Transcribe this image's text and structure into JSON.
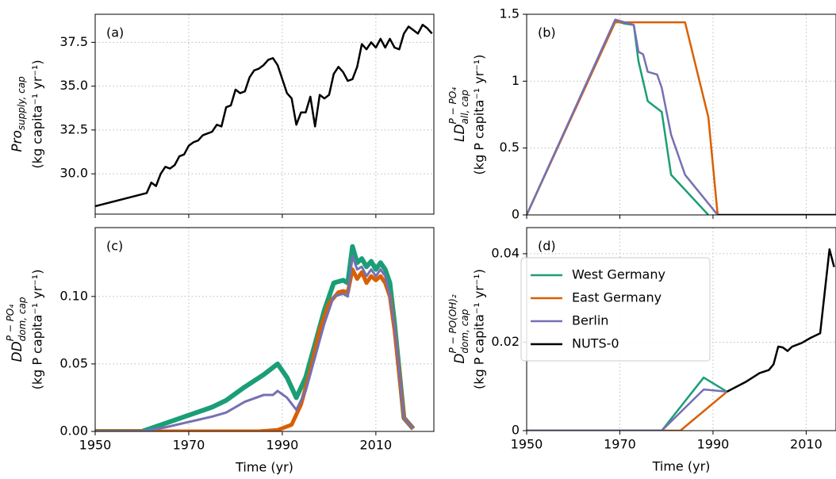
{
  "chart_data": [
    {
      "type": "line",
      "panel_label": "(a)",
      "ylabel": {
        "main": "Pro",
        "sub": "supply, cap",
        "unit": "(kg capita⁻¹ yr⁻¹)"
      },
      "xlim": [
        1950,
        2022.4
      ],
      "ylim": [
        27.7,
        39.1
      ],
      "xticks": [
        1950,
        1970,
        1990,
        2010
      ],
      "yticks": [
        {
          "value": 30,
          "label": "30.0"
        },
        32.5,
        {
          "value": 35,
          "label": "35.0"
        },
        37.5
      ],
      "grid": true,
      "series": [
        {
          "name": "NUTS-0",
          "color": "#000000",
          "x": [
            1950,
            1961,
            1962,
            1963,
            1964,
            1965,
            1966,
            1967,
            1968,
            1969,
            1970,
            1971,
            1972,
            1973,
            1974,
            1975,
            1976,
            1977,
            1978,
            1979,
            1980,
            1981,
            1982,
            1983,
            1984,
            1985,
            1986,
            1987,
            1988,
            1989,
            1990,
            1991,
            1992,
            1993,
            1994,
            1995,
            1996,
            1997,
            1998,
            1999,
            2000,
            2001,
            2002,
            2003,
            2004,
            2005,
            2006,
            2007,
            2008,
            2009,
            2010,
            2011,
            2012,
            2013,
            2014,
            2015,
            2016,
            2017,
            2018,
            2019,
            2020,
            2021,
            2022
          ],
          "values": [
            28.15,
            28.9,
            29.5,
            29.3,
            30.0,
            30.4,
            30.3,
            30.5,
            31.0,
            31.1,
            31.6,
            31.8,
            31.9,
            32.2,
            32.3,
            32.4,
            32.8,
            32.7,
            33.8,
            33.9,
            34.8,
            34.6,
            34.7,
            35.5,
            35.9,
            36.0,
            36.2,
            36.5,
            36.6,
            36.2,
            35.4,
            34.6,
            34.3,
            32.8,
            33.5,
            33.5,
            34.4,
            32.7,
            34.5,
            34.3,
            34.5,
            35.7,
            36.1,
            35.8,
            35.3,
            35.4,
            36.1,
            37.4,
            37.1,
            37.5,
            37.2,
            37.7,
            37.2,
            37.7,
            37.2,
            37.1,
            38.0,
            38.4,
            38.2,
            38.0,
            38.5,
            38.3,
            38.0
          ]
        }
      ]
    },
    {
      "type": "line",
      "panel_label": "(b)",
      "ylabel": {
        "main": "LD",
        "sup": "P − PO₄",
        "sub": "all, cap",
        "unit": "(kg P capita⁻¹ yr⁻¹)"
      },
      "xlim": [
        1950,
        2016.4
      ],
      "ylim": [
        0,
        1.5
      ],
      "xticks": [
        1950,
        1970,
        1990,
        2010
      ],
      "yticks": [
        0,
        0.5,
        1,
        1.5
      ],
      "grid": true,
      "series": [
        {
          "name": "West Germany",
          "color": "#1b9e77",
          "x": [
            1950,
            1969,
            1971,
            1973,
            1974,
            1976,
            1979,
            1981,
            1989
          ],
          "values": [
            0,
            1.45,
            1.43,
            1.42,
            1.15,
            0.85,
            0.77,
            0.3,
            0
          ]
        },
        {
          "name": "East Germany",
          "color": "#d95f02",
          "x": [
            1950,
            1969,
            1984,
            1989,
            1991
          ],
          "values": [
            0,
            1.44,
            1.44,
            0.73,
            0
          ]
        },
        {
          "name": "Berlin",
          "color": "#7570b3",
          "x": [
            1950,
            1969,
            1973,
            1974,
            1975,
            1976,
            1978,
            1979,
            1981,
            1984,
            1991
          ],
          "values": [
            0,
            1.46,
            1.42,
            1.22,
            1.2,
            1.07,
            1.05,
            0.95,
            0.6,
            0.3,
            0
          ]
        },
        {
          "name": "NUTS-0",
          "color": "#000000",
          "x": [
            1991,
            2016.4
          ],
          "values": [
            0,
            0
          ]
        }
      ]
    },
    {
      "type": "line",
      "panel_label": "(c)",
      "xlabel": "Time (yr)",
      "ylabel": {
        "main": "DD",
        "sup": "P − PO₄",
        "sub": "dom, cap",
        "unit": "(kg P capita⁻¹ yr⁻¹)"
      },
      "xlim": [
        1950,
        2022.4
      ],
      "ylim": [
        0,
        0.151
      ],
      "xticks": [
        1950,
        1970,
        1990,
        2010
      ],
      "yticks": [
        {
          "value": 0,
          "label": "0.00"
        },
        {
          "value": 0.05,
          "label": "0.05"
        },
        {
          "value": 0.1,
          "label": "0.10"
        }
      ],
      "grid": true,
      "series": [
        {
          "name": "West Germany",
          "color": "#1b9e77",
          "width": 6,
          "x": [
            1950,
            1960,
            1965,
            1970,
            1975,
            1978,
            1982,
            1986,
            1989,
            1991,
            1993,
            1995,
            1997,
            1999,
            2001,
            2003,
            2004,
            2005,
            2006,
            2007,
            2008,
            2009,
            2010,
            2011,
            2012,
            2013,
            2014,
            2016,
            2018
          ],
          "values": [
            0,
            0,
            0.006,
            0.012,
            0.018,
            0.023,
            0.033,
            0.042,
            0.05,
            0.04,
            0.025,
            0.04,
            0.065,
            0.09,
            0.11,
            0.112,
            0.11,
            0.137,
            0.125,
            0.128,
            0.122,
            0.126,
            0.12,
            0.125,
            0.12,
            0.11,
            0.08,
            0.01,
            0.002
          ]
        },
        {
          "name": "East Germany",
          "color": "#d95f02",
          "width": 5,
          "x": [
            1950,
            1985,
            1989,
            1992,
            1994,
            1996,
            1998,
            2000,
            2002,
            2003,
            2004,
            2005,
            2006,
            2007,
            2008,
            2009,
            2010,
            2011,
            2012,
            2013,
            2014,
            2016,
            2018
          ],
          "values": [
            0,
            0,
            0.001,
            0.005,
            0.02,
            0.045,
            0.075,
            0.095,
            0.103,
            0.104,
            0.103,
            0.12,
            0.113,
            0.118,
            0.11,
            0.115,
            0.112,
            0.115,
            0.11,
            0.1,
            0.075,
            0.01,
            0.002
          ]
        },
        {
          "name": "Berlin",
          "color": "#7570b3",
          "width": 3,
          "x": [
            1950,
            1960,
            1965,
            1970,
            1975,
            1978,
            1982,
            1986,
            1988,
            1989,
            1991,
            1993,
            1995,
            1997,
            1999,
            2001,
            2003,
            2004,
            2005,
            2006,
            2007,
            2008,
            2009,
            2010,
            2011,
            2012,
            2013,
            2014,
            2016,
            2018
          ],
          "values": [
            0,
            0,
            0.003,
            0.007,
            0.011,
            0.014,
            0.022,
            0.027,
            0.027,
            0.03,
            0.025,
            0.016,
            0.03,
            0.055,
            0.08,
            0.1,
            0.102,
            0.1,
            0.13,
            0.12,
            0.122,
            0.115,
            0.12,
            0.115,
            0.12,
            0.115,
            0.1,
            0.078,
            0.01,
            0.002
          ]
        }
      ]
    },
    {
      "type": "line",
      "panel_label": "(d)",
      "xlabel": "Time (yr)",
      "ylabel": {
        "main": "D",
        "sup": "P − PO(OH)₂",
        "sub": "dom, cap",
        "unit": "(kg P capita⁻¹ yr⁻¹)"
      },
      "xlim": [
        1950,
        2016.4
      ],
      "ylim": [
        0,
        0.0459
      ],
      "xticks": [
        1950,
        1970,
        1990,
        2010
      ],
      "yticks": [
        0,
        0.02,
        0.04
      ],
      "grid": true,
      "legend": "upper left",
      "series": [
        {
          "name": "West Germany",
          "color": "#1b9e77",
          "x": [
            1950,
            1979,
            1988,
            1993
          ],
          "values": [
            0,
            0,
            0.012,
            0.0088
          ]
        },
        {
          "name": "East Germany",
          "color": "#d95f02",
          "x": [
            1950,
            1983,
            1993
          ],
          "values": [
            0,
            0,
            0.0088
          ]
        },
        {
          "name": "Berlin",
          "color": "#7570b3",
          "x": [
            1950,
            1979,
            1988,
            1993
          ],
          "values": [
            0,
            0,
            0.0093,
            0.0088
          ]
        },
        {
          "name": "NUTS-0",
          "color": "#000000",
          "x": [
            1993,
            1997,
            2000,
            2002,
            2003,
            2004,
            2005,
            2006,
            2007,
            2009,
            2011,
            2013,
            2015,
            2016
          ],
          "values": [
            0.0088,
            0.011,
            0.013,
            0.0137,
            0.015,
            0.019,
            0.0188,
            0.018,
            0.019,
            0.0198,
            0.021,
            0.022,
            0.041,
            0.037
          ]
        }
      ]
    }
  ]
}
